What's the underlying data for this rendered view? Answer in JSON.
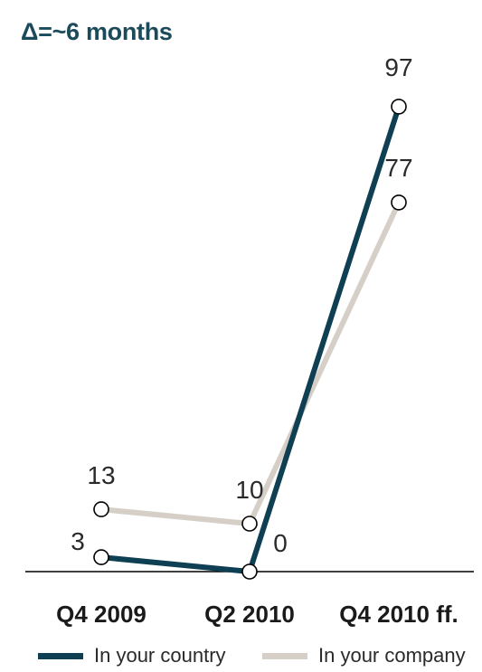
{
  "chart_data": {
    "type": "line",
    "annotation": "Δ=~6 months",
    "categories": [
      "Q4 2009",
      "Q2 2010",
      "Q4 2010 ff."
    ],
    "series": [
      {
        "name": "In your country",
        "values": [
          3,
          0,
          97
        ],
        "color": "#0f3f52"
      },
      {
        "name": "In your company",
        "values": [
          13,
          10,
          77
        ],
        "color": "#d6cfc8"
      }
    ],
    "ylim": [
      0,
      100
    ],
    "grid": false,
    "legend_position": "bottom"
  }
}
